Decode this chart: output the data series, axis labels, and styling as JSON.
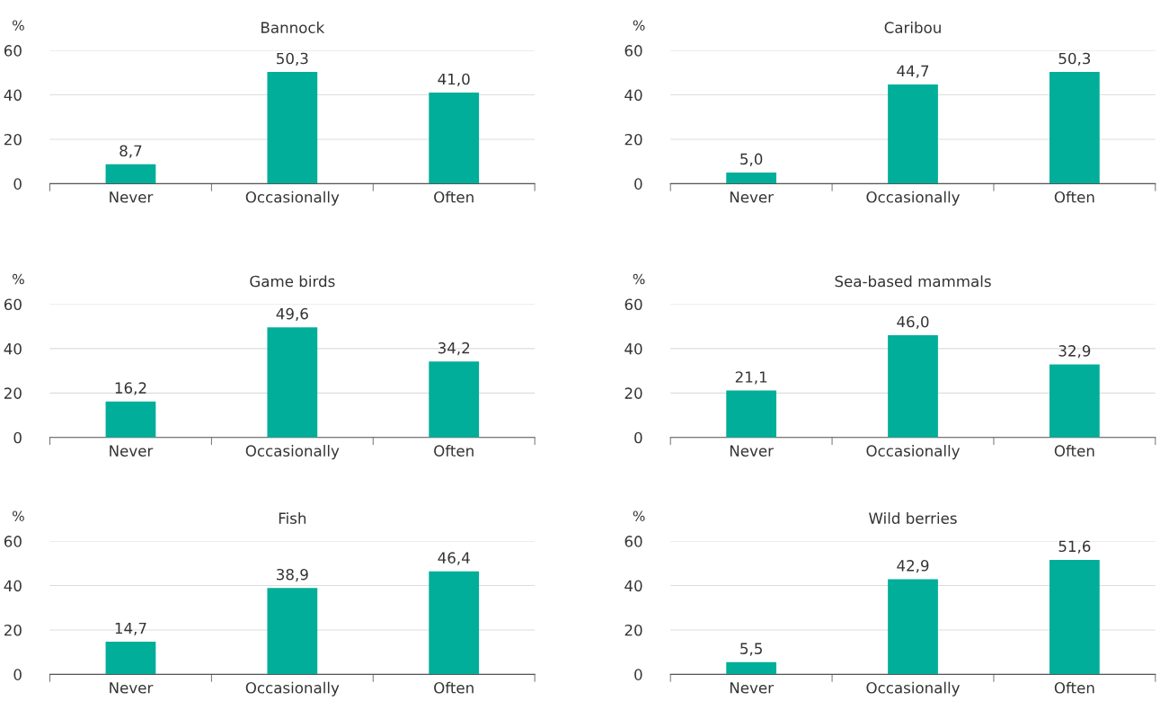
{
  "chart_data": [
    {
      "type": "bar",
      "title": "Bannock",
      "ylabel": "%",
      "categories": [
        "Never",
        "Occasionally",
        "Often"
      ],
      "values": [
        8.7,
        50.3,
        41.0
      ],
      "value_labels": [
        "8,7",
        "50,3",
        "41,0"
      ],
      "color": "#00ae99",
      "ylim": [
        0,
        60
      ],
      "yticks": [
        0,
        20,
        40,
        60
      ],
      "grid": "y"
    },
    {
      "type": "bar",
      "title": "Caribou",
      "ylabel": "%",
      "categories": [
        "Never",
        "Occasionally",
        "Often"
      ],
      "values": [
        5.0,
        44.7,
        50.3
      ],
      "value_labels": [
        "5,0",
        "44,7",
        "50,3"
      ],
      "color": "#00ae99",
      "ylim": [
        0,
        60
      ],
      "yticks": [
        0,
        20,
        40,
        60
      ],
      "grid": "y"
    },
    {
      "type": "bar",
      "title": "Game birds",
      "ylabel": "%",
      "categories": [
        "Never",
        "Occasionally",
        "Often"
      ],
      "values": [
        16.2,
        49.6,
        34.2
      ],
      "value_labels": [
        "16,2",
        "49,6",
        "34,2"
      ],
      "color": "#00ae99",
      "ylim": [
        0,
        60
      ],
      "yticks": [
        0,
        20,
        40,
        60
      ],
      "grid": "y"
    },
    {
      "type": "bar",
      "title": "Sea-based mammals",
      "ylabel": "%",
      "categories": [
        "Never",
        "Occasionally",
        "Often"
      ],
      "values": [
        21.1,
        46.0,
        32.9
      ],
      "value_labels": [
        "21,1",
        "46,0",
        "32,9"
      ],
      "color": "#00ae99",
      "ylim": [
        0,
        60
      ],
      "yticks": [
        0,
        20,
        40,
        60
      ],
      "grid": "y"
    },
    {
      "type": "bar",
      "title": "Fish",
      "ylabel": "%",
      "categories": [
        "Never",
        "Occasionally",
        "Often"
      ],
      "values": [
        14.7,
        38.9,
        46.4
      ],
      "value_labels": [
        "14,7",
        "38,9",
        "46,4"
      ],
      "color": "#00ae99",
      "ylim": [
        0,
        60
      ],
      "yticks": [
        0,
        20,
        40,
        60
      ],
      "grid": "y"
    },
    {
      "type": "bar",
      "title": "Wild berries",
      "ylabel": "%",
      "categories": [
        "Never",
        "Occasionally",
        "Often"
      ],
      "values": [
        5.5,
        42.9,
        51.6
      ],
      "value_labels": [
        "5,5",
        "42,9",
        "51,6"
      ],
      "color": "#00ae99",
      "ylim": [
        0,
        60
      ],
      "yticks": [
        0,
        20,
        40,
        60
      ],
      "grid": "y"
    }
  ]
}
